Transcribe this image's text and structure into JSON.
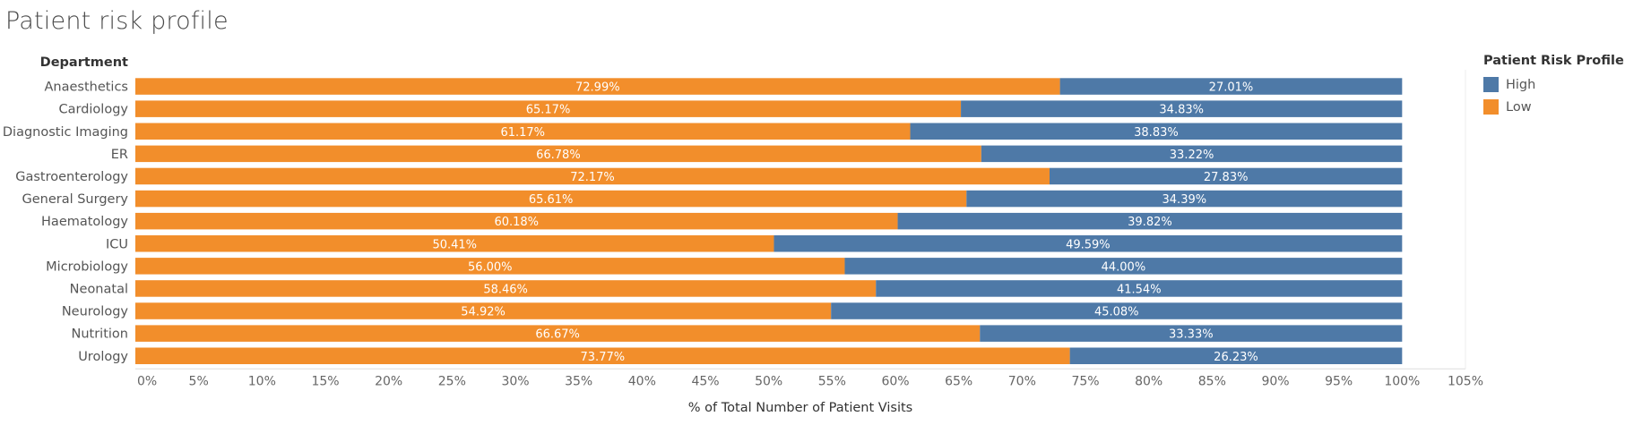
{
  "title": "Patient risk profile",
  "chart_data": {
    "type": "bar",
    "orientation": "horizontal",
    "stacked": true,
    "row_header": "Department",
    "categories": [
      "Anaesthetics",
      "Cardiology",
      "Diagnostic Imaging",
      "ER",
      "Gastroenterology",
      "General Surgery",
      "Haematology",
      "ICU",
      "Microbiology",
      "Neonatal",
      "Neurology",
      "Nutrition",
      "Urology"
    ],
    "series": [
      {
        "name": "Low",
        "color": "#F28E2B",
        "values": [
          72.99,
          65.17,
          61.17,
          66.78,
          72.17,
          65.61,
          60.18,
          50.41,
          56.0,
          58.46,
          54.92,
          66.67,
          73.77
        ],
        "labels": [
          "72.99%",
          "65.17%",
          "61.17%",
          "66.78%",
          "72.17%",
          "65.61%",
          "60.18%",
          "50.41%",
          "56.00%",
          "58.46%",
          "54.92%",
          "66.67%",
          "73.77%"
        ]
      },
      {
        "name": "High",
        "color": "#4E79A7",
        "values": [
          27.01,
          34.83,
          38.83,
          33.22,
          27.83,
          34.39,
          39.82,
          49.59,
          44.0,
          41.54,
          45.08,
          33.33,
          26.23
        ],
        "labels": [
          "27.01%",
          "34.83%",
          "38.83%",
          "33.22%",
          "27.83%",
          "34.39%",
          "39.82%",
          "49.59%",
          "44.00%",
          "41.54%",
          "45.08%",
          "33.33%",
          "26.23%"
        ]
      }
    ],
    "xlabel": "% of Total Number of Patient Visits",
    "xlim": [
      0,
      105
    ],
    "x_ticks": [
      0,
      5,
      10,
      15,
      20,
      25,
      30,
      35,
      40,
      45,
      50,
      55,
      60,
      65,
      70,
      75,
      80,
      85,
      90,
      95,
      100,
      105
    ],
    "x_tick_labels": [
      "0%",
      "5%",
      "10%",
      "15%",
      "20%",
      "25%",
      "30%",
      "35%",
      "40%",
      "45%",
      "50%",
      "55%",
      "60%",
      "65%",
      "70%",
      "75%",
      "80%",
      "85%",
      "90%",
      "95%",
      "100%",
      "105%"
    ],
    "legend_position": "right",
    "grid": false
  },
  "legend": {
    "title": "Patient Risk Profile",
    "items": [
      {
        "label": "High",
        "color": "#4E79A7"
      },
      {
        "label": "Low",
        "color": "#F28E2B"
      }
    ]
  }
}
